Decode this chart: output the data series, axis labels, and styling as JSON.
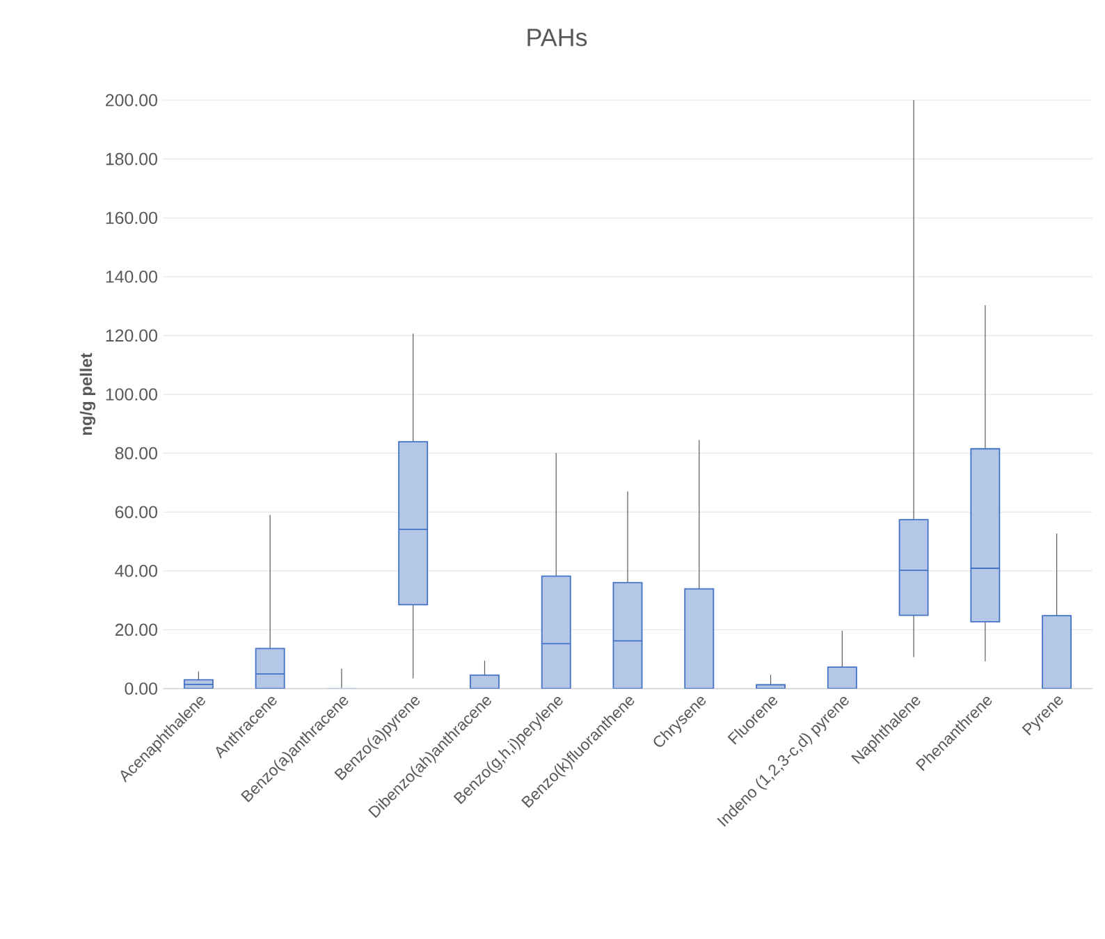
{
  "chart_data": {
    "type": "box",
    "title": "PAHs",
    "ylabel": "ng/g pellet",
    "categories": [
      "Acenaphthalene",
      "Anthracene",
      "Benzo(a)anthracene",
      "Benzo(a)pyrene",
      "Dibenzo(ah)anthracene",
      "Benzo(g,h,i)perylene",
      "Benzo(k)fluoranthene",
      "Chrysene",
      "Fluorene",
      "Indeno (1,2,3-c,d) pyrene",
      "Naphthalene",
      "Phenanthrene",
      "Pyrene"
    ],
    "boxes": [
      {
        "low": 0,
        "q1": 0,
        "median": 1.4,
        "q3": 3.0,
        "high": 5.8
      },
      {
        "low": 0,
        "q1": 0,
        "median": 5.0,
        "q3": 13.6,
        "high": 59
      },
      {
        "low": 0,
        "q1": 0,
        "median": 0,
        "q3": 0,
        "high": 6.8
      },
      {
        "low": 3.5,
        "q1": 28.5,
        "median": 54.1,
        "q3": 83.9,
        "high": 120.7
      },
      {
        "low": 0,
        "q1": 0,
        "median": 0,
        "q3": 4.6,
        "high": 9.5
      },
      {
        "low": 0,
        "q1": 0,
        "median": 15.3,
        "q3": 38.2,
        "high": 80.1
      },
      {
        "low": 0,
        "q1": 0,
        "median": 16.2,
        "q3": 36.0,
        "high": 67.0
      },
      {
        "low": 0,
        "q1": 0,
        "median": 0,
        "q3": 33.9,
        "high": 84.5
      },
      {
        "low": 0,
        "q1": 0,
        "median": 0,
        "q3": 1.3,
        "high": 4.7
      },
      {
        "low": 0,
        "q1": 0,
        "median": 0,
        "q3": 7.3,
        "high": 19.7
      },
      {
        "low": 10.7,
        "q1": 24.9,
        "median": 40.2,
        "q3": 57.4,
        "high": 200
      },
      {
        "low": 9.3,
        "q1": 22.7,
        "median": 40.9,
        "q3": 81.5,
        "high": 130.3
      },
      {
        "low": 0,
        "q1": 0,
        "median": 0,
        "q3": 24.8,
        "high": 52.7
      }
    ],
    "color": "#b4c7e7",
    "ylim": [
      0,
      200
    ],
    "yticks": [
      {
        "value": 0,
        "label": "0.00"
      },
      {
        "value": 20,
        "label": "20.00"
      },
      {
        "value": 40,
        "label": "40.00"
      },
      {
        "value": 60,
        "label": "60.00"
      },
      {
        "value": 80,
        "label": "80.00"
      },
      {
        "value": 100,
        "label": "100.00"
      },
      {
        "value": 120,
        "label": "120.00"
      },
      {
        "value": 140,
        "label": "140.00"
      },
      {
        "value": 160,
        "label": "160.00"
      },
      {
        "value": 180,
        "label": "180.00"
      },
      {
        "value": 200,
        "label": "200.00"
      }
    ],
    "grid": "y"
  }
}
